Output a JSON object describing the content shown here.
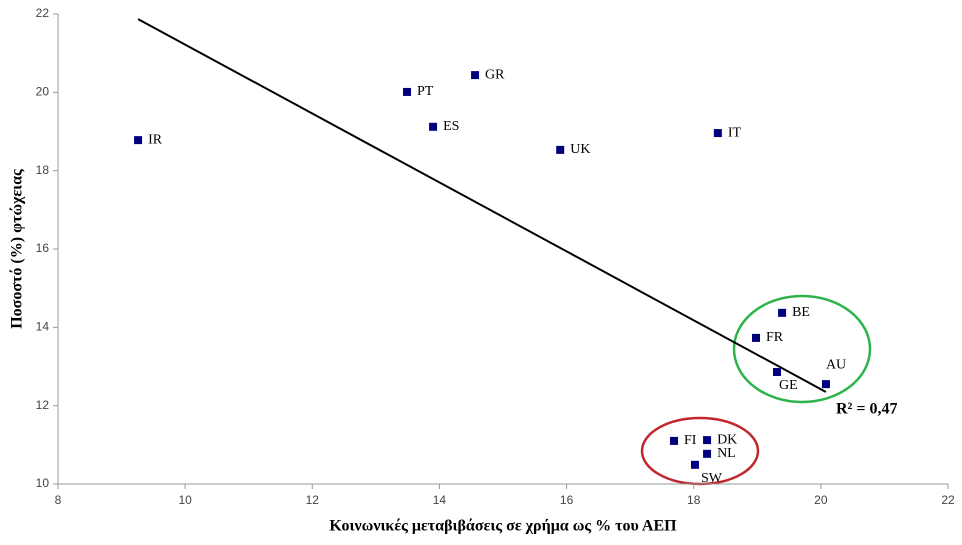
{
  "chart_data": {
    "type": "scatter",
    "x_label": "Κοινωνικές μεταβιβάσεις σε χρήμα ως % του ΑΕΠ",
    "y_label": "Ποσοστό (%) φτώχειας",
    "labels": [
      "IR",
      "PT",
      "GR",
      "ES",
      "UK",
      "IT",
      "BE",
      "FR",
      "GE",
      "AU",
      "FI",
      "DK",
      "NL",
      "SW"
    ],
    "x": [
      9.26,
      13.49,
      14.56,
      13.9,
      15.9,
      18.38,
      19.39,
      18.98,
      19.31,
      20.08,
      17.69,
      18.21,
      18.21,
      18.02
    ],
    "values": [
      18.78,
      20.01,
      20.44,
      19.12,
      18.53,
      18.96,
      14.37,
      13.73,
      12.86,
      12.55,
      11.1,
      11.12,
      10.77,
      10.49
    ],
    "color": "#00007f",
    "trendline": {
      "x": [
        9.26,
        20.08
      ],
      "y": [
        21.87,
        12.35
      ],
      "color": "#000000"
    },
    "annotation": "R² = 0,47",
    "xlim": [
      8,
      22
    ],
    "xticks": [
      8,
      10,
      12,
      14,
      16,
      18,
      20,
      22
    ],
    "ylim": [
      10,
      22
    ],
    "yticks": [
      10,
      12,
      14,
      16,
      18,
      20,
      22
    ],
    "grid": false
  }
}
